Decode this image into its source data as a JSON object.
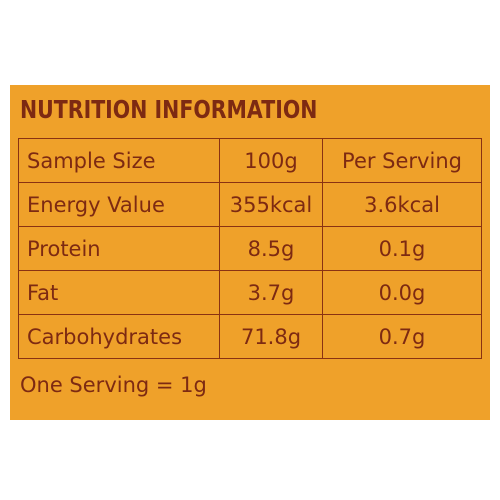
{
  "header": {
    "title": "NUTRITION INFORMATION"
  },
  "table": {
    "rows": [
      [
        "Sample Size",
        "100g",
        "Per Serving"
      ],
      [
        "Energy Value",
        "355kcal",
        "3.6kcal"
      ],
      [
        "Protein",
        "8.5g",
        "0.1g"
      ],
      [
        "Fat",
        "3.7g",
        "0.0g"
      ],
      [
        "Carbohydrates",
        "71.8g",
        "0.7g"
      ]
    ]
  },
  "footer": {
    "note": "One Serving = 1g"
  }
}
